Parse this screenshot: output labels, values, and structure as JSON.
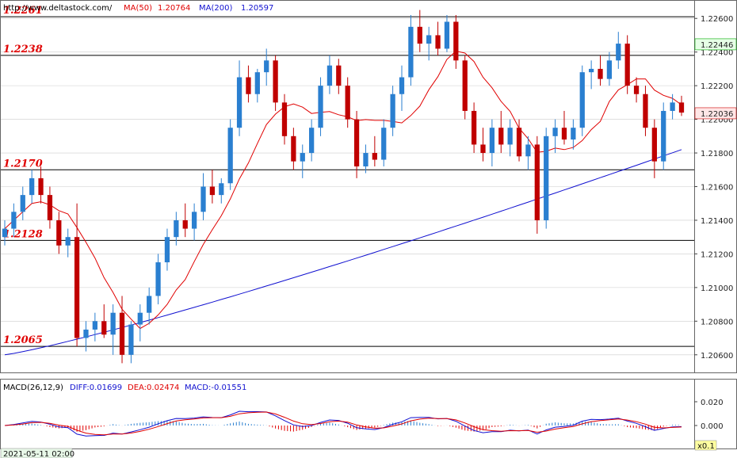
{
  "header": {
    "url": "http://www.deltastock.com/",
    "ma50_label": "MA(50)",
    "ma50_value": "1.20764",
    "ma200_label": "MA(200)",
    "ma200_value": "1.20597"
  },
  "macd_header": {
    "name": "MACD(26,12,9)",
    "diff": "DIFF:0.01699",
    "dea": "DEA:0.02474",
    "macd": "MACD:-0.01551"
  },
  "date_label": "2021-05-11 02:00",
  "zoom_label": "x0.1",
  "colors": {
    "up": "#2a7fd0",
    "down": "#c00000",
    "ma50": "#e00000",
    "ma200": "#1010d0",
    "level_text": "#e00000",
    "macd_hist": "#e00000",
    "macd_pos_hist": "#2a7fd0",
    "grid": "#cccccc",
    "current_price_bg": "#ffe6e6",
    "green_box_bg": "#e6ffe6"
  },
  "price_axis": {
    "ticks": [
      "1.22600",
      "1.22400",
      "1.22200",
      "1.22000",
      "1.21800",
      "1.21600",
      "1.21400",
      "1.21200",
      "1.21000",
      "1.20800",
      "1.20600"
    ],
    "min": 1.205,
    "max": 1.227,
    "current_price": "1.22036",
    "highlight_price": "1.22446"
  },
  "macd_axis": {
    "ticks": [
      "0.020",
      "0.000"
    ]
  },
  "levels": [
    {
      "label": "1.2261",
      "value": 1.2261
    },
    {
      "label": "1.2238",
      "value": 1.2238
    },
    {
      "label": "1.2170",
      "value": 1.217
    },
    {
      "label": "1.2128",
      "value": 1.2128
    },
    {
      "label": "1.2065",
      "value": 1.2065
    }
  ],
  "chart_data": {
    "type": "candlestick",
    "title": "",
    "ylim": [
      1.205,
      1.227
    ],
    "candles_ohlc_approx": [
      [
        1.213,
        1.214,
        1.2125,
        1.2135
      ],
      [
        1.2135,
        1.215,
        1.213,
        1.2145
      ],
      [
        1.2145,
        1.216,
        1.214,
        1.2155
      ],
      [
        1.2155,
        1.217,
        1.215,
        1.2165
      ],
      [
        1.2165,
        1.2172,
        1.215,
        1.2155
      ],
      [
        1.2155,
        1.216,
        1.2135,
        1.214
      ],
      [
        1.214,
        1.2145,
        1.212,
        1.2125
      ],
      [
        1.2125,
        1.2135,
        1.2118,
        1.213
      ],
      [
        1.213,
        1.215,
        1.2065,
        1.207
      ],
      [
        1.207,
        1.208,
        1.2062,
        1.2075
      ],
      [
        1.2075,
        1.2085,
        1.2068,
        1.208
      ],
      [
        1.208,
        1.209,
        1.207,
        1.2072
      ],
      [
        1.2072,
        1.209,
        1.206,
        1.2085
      ],
      [
        1.2085,
        1.2095,
        1.2055,
        1.206
      ],
      [
        1.206,
        1.208,
        1.2055,
        1.2078
      ],
      [
        1.2078,
        1.209,
        1.2068,
        1.2085
      ],
      [
        1.2085,
        1.21,
        1.2078,
        1.2095
      ],
      [
        1.2095,
        1.212,
        1.209,
        1.2115
      ],
      [
        1.2115,
        1.2135,
        1.211,
        1.213
      ],
      [
        1.213,
        1.2145,
        1.2125,
        1.214
      ],
      [
        1.214,
        1.215,
        1.213,
        1.2135
      ],
      [
        1.2135,
        1.215,
        1.2128,
        1.2145
      ],
      [
        1.2145,
        1.2168,
        1.214,
        1.216
      ],
      [
        1.216,
        1.217,
        1.215,
        1.2155
      ],
      [
        1.2155,
        1.2165,
        1.215,
        1.2162
      ],
      [
        1.2162,
        1.22,
        1.2158,
        1.2195
      ],
      [
        1.2195,
        1.2235,
        1.219,
        1.2225
      ],
      [
        1.2225,
        1.2232,
        1.221,
        1.2215
      ],
      [
        1.2215,
        1.223,
        1.221,
        1.2228
      ],
      [
        1.2228,
        1.2242,
        1.222,
        1.2235
      ],
      [
        1.2235,
        1.2238,
        1.2205,
        1.221
      ],
      [
        1.221,
        1.2215,
        1.2185,
        1.219
      ],
      [
        1.219,
        1.2195,
        1.217,
        1.2175
      ],
      [
        1.2175,
        1.2185,
        1.2165,
        1.218
      ],
      [
        1.218,
        1.22,
        1.2175,
        1.2195
      ],
      [
        1.2195,
        1.2225,
        1.219,
        1.222
      ],
      [
        1.222,
        1.2238,
        1.2215,
        1.2232
      ],
      [
        1.2232,
        1.2236,
        1.2215,
        1.222
      ],
      [
        1.222,
        1.2225,
        1.2195,
        1.22
      ],
      [
        1.22,
        1.2205,
        1.2165,
        1.2172
      ],
      [
        1.2172,
        1.2185,
        1.2168,
        1.218
      ],
      [
        1.218,
        1.219,
        1.2172,
        1.2176
      ],
      [
        1.2176,
        1.22,
        1.2172,
        1.2195
      ],
      [
        1.2195,
        1.222,
        1.219,
        1.2215
      ],
      [
        1.2215,
        1.2232,
        1.2205,
        1.2225
      ],
      [
        1.2225,
        1.2262,
        1.222,
        1.2255
      ],
      [
        1.2255,
        1.2265,
        1.224,
        1.2245
      ],
      [
        1.2245,
        1.2255,
        1.2235,
        1.225
      ],
      [
        1.225,
        1.2258,
        1.2238,
        1.2242
      ],
      [
        1.2242,
        1.2262,
        1.224,
        1.2258
      ],
      [
        1.2258,
        1.2262,
        1.223,
        1.2235
      ],
      [
        1.2235,
        1.2238,
        1.22,
        1.2205
      ],
      [
        1.2205,
        1.221,
        1.218,
        1.2185
      ],
      [
        1.2185,
        1.2195,
        1.2175,
        1.218
      ],
      [
        1.218,
        1.22,
        1.2172,
        1.2195
      ],
      [
        1.2195,
        1.2205,
        1.218,
        1.2185
      ],
      [
        1.2185,
        1.22,
        1.2178,
        1.2195
      ],
      [
        1.2195,
        1.22,
        1.2175,
        1.2178
      ],
      [
        1.2178,
        1.219,
        1.217,
        1.2185
      ],
      [
        1.2185,
        1.219,
        1.2132,
        1.214
      ],
      [
        1.214,
        1.2195,
        1.2135,
        1.219
      ],
      [
        1.219,
        1.22,
        1.218,
        1.2195
      ],
      [
        1.2195,
        1.2205,
        1.2185,
        1.2188
      ],
      [
        1.2188,
        1.22,
        1.2182,
        1.2195
      ],
      [
        1.2195,
        1.2232,
        1.219,
        1.2228
      ],
      [
        1.2228,
        1.2235,
        1.2218,
        1.223
      ],
      [
        1.223,
        1.2238,
        1.222,
        1.2224
      ],
      [
        1.2224,
        1.224,
        1.222,
        1.2235
      ],
      [
        1.2235,
        1.2252,
        1.223,
        1.2245
      ],
      [
        1.2245,
        1.225,
        1.2215,
        1.222
      ],
      [
        1.222,
        1.2225,
        1.221,
        1.2215
      ],
      [
        1.2215,
        1.222,
        1.219,
        1.2195
      ],
      [
        1.2195,
        1.22,
        1.2165,
        1.2175
      ],
      [
        1.2175,
        1.221,
        1.217,
        1.2205
      ],
      [
        1.2205,
        1.2215,
        1.22,
        1.221
      ],
      [
        1.221,
        1.2214,
        1.2202,
        1.2204
      ]
    ],
    "ma50": "red moving average line",
    "ma200": "blue moving average line",
    "macd_panel": {
      "diff_line": "blue",
      "dea_line": "red",
      "histogram": "bars"
    }
  }
}
